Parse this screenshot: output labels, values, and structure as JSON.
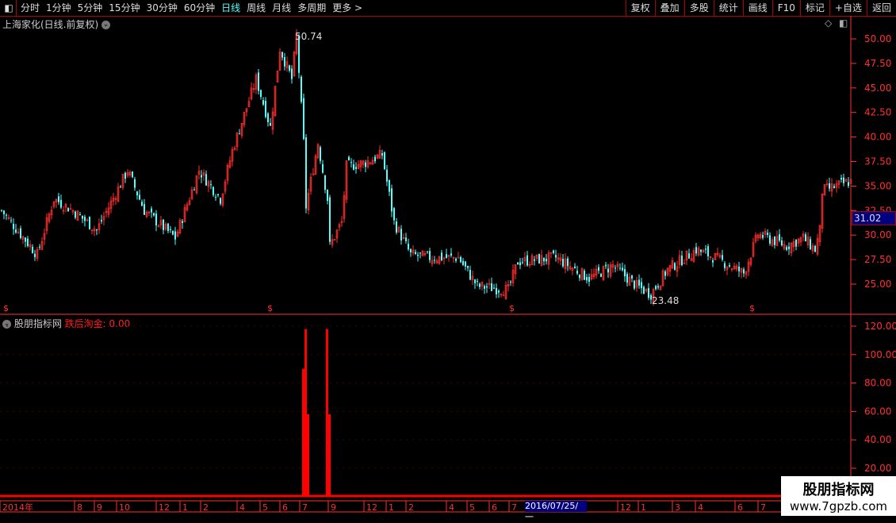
{
  "toolbar": {
    "periods": [
      "分时",
      "1分钟",
      "5分钟",
      "15分钟",
      "30分钟",
      "60分钟",
      "日线",
      "周线",
      "月线",
      "多周期",
      "更多 >"
    ],
    "active": "日线",
    "right_buttons": [
      "复权",
      "叠加",
      "多股",
      "统计",
      "画线",
      "F10",
      "标记",
      "+自选",
      "返回"
    ]
  },
  "main_title": "上海家化(日线.前复权)",
  "sub_title": "股朋指标网",
  "indicator_label": "跌后淘金: 0.00",
  "current_price": "31.02",
  "annotations": {
    "high": "50.74",
    "low": "23.48"
  },
  "date_cursor": "2016/07/25/一",
  "watermark": {
    "line1": "股朋指标网",
    "line2": "www.7gpzb.com"
  },
  "colors": {
    "up": "#ff3030",
    "down": "#54ffff",
    "axis": "#ff3030",
    "active": "#54ffff"
  },
  "chart_data": [
    {
      "type": "candlestick",
      "y_ticks": [
        "50.00",
        "47.50",
        "45.00",
        "42.50",
        "40.00",
        "37.50",
        "35.00",
        "32.50",
        "30.00",
        "27.50",
        "25.00"
      ],
      "ylim": [
        22.5,
        51
      ],
      "approx_close_path": [
        [
          0,
          32.5
        ],
        [
          15,
          28
        ],
        [
          22,
          33.7
        ],
        [
          30,
          32.5
        ],
        [
          40,
          30.5
        ],
        [
          53,
          36.6
        ],
        [
          60,
          32.5
        ],
        [
          73,
          29.7
        ],
        [
          83,
          36.6
        ],
        [
          92,
          33.7
        ],
        [
          97,
          38.6
        ],
        [
          107,
          45.9
        ],
        [
          113,
          41
        ],
        [
          117,
          49
        ],
        [
          122,
          45.9
        ],
        [
          124,
          50.3
        ],
        [
          127,
          39.4
        ],
        [
          128,
          32.9
        ],
        [
          133,
          39.4
        ],
        [
          137,
          33.7
        ],
        [
          138,
          28.9
        ],
        [
          143,
          31.3
        ],
        [
          145,
          37
        ],
        [
          153,
          37.4
        ],
        [
          160,
          38.2
        ],
        [
          165,
          31.3
        ],
        [
          172,
          28
        ],
        [
          180,
          27.7
        ],
        [
          192,
          27.7
        ],
        [
          200,
          24.8
        ],
        [
          213,
          24.4
        ],
        [
          217,
          27.3
        ],
        [
          233,
          27.7
        ],
        [
          247,
          25.6
        ],
        [
          257,
          26.9
        ],
        [
          267,
          24.8
        ],
        [
          273,
          24
        ],
        [
          280,
          26.5
        ],
        [
          292,
          28.5
        ],
        [
          300,
          27.7
        ],
        [
          312,
          26.1
        ],
        [
          318,
          30.1
        ],
        [
          330,
          28.9
        ],
        [
          337,
          29.7
        ],
        [
          342,
          28.5
        ],
        [
          344,
          30.5
        ],
        [
          345,
          34.5
        ],
        [
          357,
          35.5
        ]
      ]
    },
    {
      "type": "bar",
      "series": "跌后淘金",
      "y_ticks": [
        "120.00",
        "100.00",
        "80.00",
        "60.00",
        "40.00",
        "20.00"
      ],
      "ylim": [
        10,
        125
      ],
      "signals": [
        [
          128,
          118
        ],
        [
          127,
          90
        ],
        [
          129,
          58
        ],
        [
          137,
          118
        ],
        [
          138,
          58
        ]
      ]
    }
  ],
  "x_labels": [
    "2014年",
    "8",
    "9",
    "10",
    "12",
    "1",
    "2",
    "4",
    "5",
    "6",
    "7",
    "9",
    "12",
    "1",
    "2",
    "4",
    "5",
    "6",
    "7",
    "12",
    "1",
    "3",
    "4",
    "6",
    "7"
  ]
}
